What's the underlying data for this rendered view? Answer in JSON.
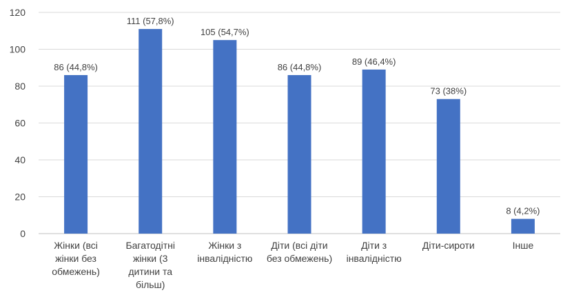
{
  "chart_data": {
    "type": "bar",
    "categories": [
      [
        "Жінки (всі",
        "жінки без",
        "обмежень)"
      ],
      [
        "Багатодітні",
        "жінки (3",
        "дитини та",
        "більш)"
      ],
      [
        "Жінки з",
        "інвалідністю"
      ],
      [
        "Діти (всі діти",
        "без обмежень)"
      ],
      [
        "Діти з",
        "інвалідністю"
      ],
      [
        "Діти-сироти"
      ],
      [
        "Інше"
      ]
    ],
    "values": [
      86,
      111,
      105,
      86,
      89,
      73,
      8
    ],
    "data_labels": [
      "86 (44,8%)",
      "111 (57,8%)",
      "105 (54,7%)",
      "86 (44,8%)",
      "89 (46,4%)",
      "73 (38%)",
      "8 (4,2%)"
    ],
    "yticks": [
      "0",
      "20",
      "40",
      "60",
      "80",
      "100",
      "120"
    ],
    "ylim": [
      0,
      120
    ],
    "grid": true,
    "bar_color": "#4472c4",
    "grid_color": "#d9d9d9",
    "axis_color": "#bfbfbf",
    "text_color": "#404040"
  }
}
